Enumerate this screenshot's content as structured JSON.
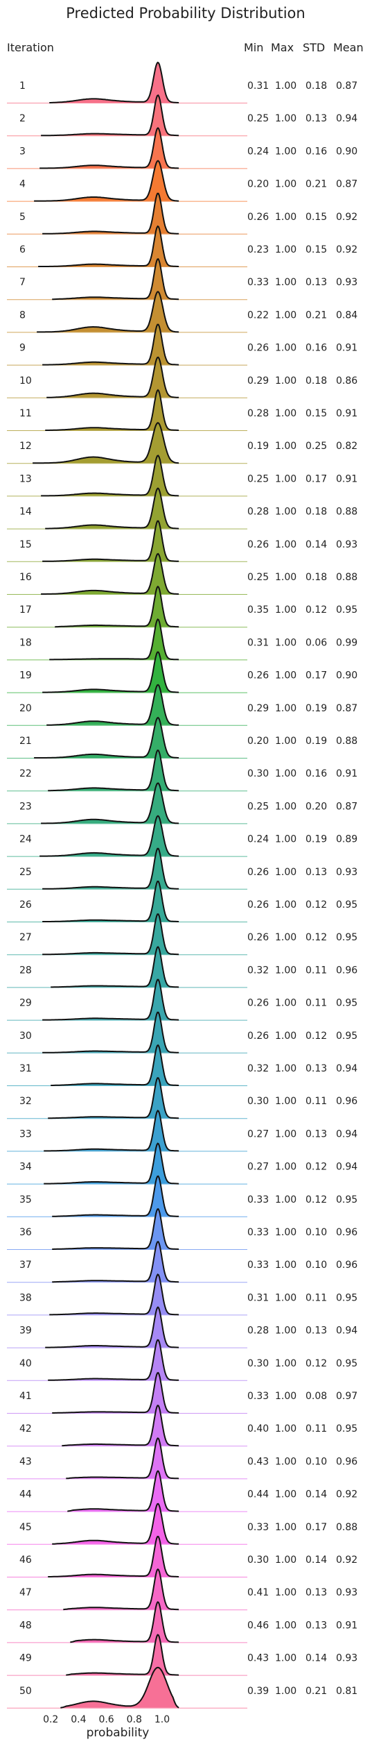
{
  "chart_data": {
    "type": "ridgeline",
    "title": "Predicted Probability Distribution",
    "xlabel": "probability",
    "ylabel": "Iteration",
    "xlim": [
      0.0,
      1.2
    ],
    "xticks": [
      "0.2",
      "0.4",
      "0.6",
      "0.8",
      "1.0"
    ],
    "stat_headers": [
      "Min",
      "Max",
      "STD",
      "Mean"
    ],
    "rows": [
      {
        "iteration": "1",
        "min": "0.31",
        "max": "1.00",
        "std": "0.18",
        "mean": "0.87",
        "color": "#f77189"
      },
      {
        "iteration": "2",
        "min": "0.25",
        "max": "1.00",
        "std": "0.13",
        "mean": "0.94",
        "color": "#f7737c"
      },
      {
        "iteration": "3",
        "min": "0.24",
        "max": "1.00",
        "std": "0.16",
        "mean": "0.90",
        "color": "#f7754f"
      },
      {
        "iteration": "4",
        "min": "0.20",
        "max": "1.00",
        "std": "0.21",
        "mean": "0.87",
        "color": "#f57a32"
      },
      {
        "iteration": "5",
        "min": "0.26",
        "max": "1.00",
        "std": "0.15",
        "mean": "0.92",
        "color": "#e57f32"
      },
      {
        "iteration": "6",
        "min": "0.23",
        "max": "1.00",
        "std": "0.15",
        "mean": "0.92",
        "color": "#d98632"
      },
      {
        "iteration": "7",
        "min": "0.33",
        "max": "1.00",
        "std": "0.13",
        "mean": "0.93",
        "color": "#cf8a32"
      },
      {
        "iteration": "8",
        "min": "0.22",
        "max": "1.00",
        "std": "0.21",
        "mean": "0.84",
        "color": "#c48f32"
      },
      {
        "iteration": "9",
        "min": "0.26",
        "max": "1.00",
        "std": "0.16",
        "mean": "0.91",
        "color": "#bb9332"
      },
      {
        "iteration": "10",
        "min": "0.29",
        "max": "1.00",
        "std": "0.18",
        "mean": "0.86",
        "color": "#b39632"
      },
      {
        "iteration": "11",
        "min": "0.28",
        "max": "1.00",
        "std": "0.15",
        "mean": "0.91",
        "color": "#ab9a32"
      },
      {
        "iteration": "12",
        "min": "0.19",
        "max": "1.00",
        "std": "0.25",
        "mean": "0.82",
        "color": "#a49d32"
      },
      {
        "iteration": "13",
        "min": "0.25",
        "max": "1.00",
        "std": "0.17",
        "mean": "0.91",
        "color": "#9ca032"
      },
      {
        "iteration": "14",
        "min": "0.28",
        "max": "1.00",
        "std": "0.18",
        "mean": "0.88",
        "color": "#93a332"
      },
      {
        "iteration": "15",
        "min": "0.26",
        "max": "1.00",
        "std": "0.14",
        "mean": "0.93",
        "color": "#89a632"
      },
      {
        "iteration": "16",
        "min": "0.25",
        "max": "1.00",
        "std": "0.18",
        "mean": "0.88",
        "color": "#7ea932"
      },
      {
        "iteration": "17",
        "min": "0.35",
        "max": "1.00",
        "std": "0.12",
        "mean": "0.95",
        "color": "#6eac32"
      },
      {
        "iteration": "18",
        "min": "0.31",
        "max": "1.00",
        "std": "0.06",
        "mean": "0.99",
        "color": "#55af32"
      },
      {
        "iteration": "19",
        "min": "0.26",
        "max": "1.00",
        "std": "0.17",
        "mean": "0.90",
        "color": "#32b23f"
      },
      {
        "iteration": "20",
        "min": "0.29",
        "max": "1.00",
        "std": "0.19",
        "mean": "0.87",
        "color": "#34b058"
      },
      {
        "iteration": "21",
        "min": "0.20",
        "max": "1.00",
        "std": "0.19",
        "mean": "0.88",
        "color": "#35ae68"
      },
      {
        "iteration": "22",
        "min": "0.30",
        "max": "1.00",
        "std": "0.16",
        "mean": "0.91",
        "color": "#35ad74"
      },
      {
        "iteration": "23",
        "min": "0.25",
        "max": "1.00",
        "std": "0.20",
        "mean": "0.87",
        "color": "#36ac7e"
      },
      {
        "iteration": "24",
        "min": "0.24",
        "max": "1.00",
        "std": "0.19",
        "mean": "0.89",
        "color": "#36ab87"
      },
      {
        "iteration": "25",
        "min": "0.26",
        "max": "1.00",
        "std": "0.13",
        "mean": "0.93",
        "color": "#37aa8f"
      },
      {
        "iteration": "26",
        "min": "0.26",
        "max": "1.00",
        "std": "0.12",
        "mean": "0.95",
        "color": "#37a997"
      },
      {
        "iteration": "27",
        "min": "0.26",
        "max": "1.00",
        "std": "0.12",
        "mean": "0.95",
        "color": "#38a89e"
      },
      {
        "iteration": "28",
        "min": "0.32",
        "max": "1.00",
        "std": "0.11",
        "mean": "0.96",
        "color": "#38a7a5"
      },
      {
        "iteration": "29",
        "min": "0.26",
        "max": "1.00",
        "std": "0.11",
        "mean": "0.95",
        "color": "#39a6ad"
      },
      {
        "iteration": "30",
        "min": "0.26",
        "max": "1.00",
        "std": "0.12",
        "mean": "0.95",
        "color": "#3aa5b4"
      },
      {
        "iteration": "31",
        "min": "0.32",
        "max": "1.00",
        "std": "0.13",
        "mean": "0.94",
        "color": "#3aa4bc"
      },
      {
        "iteration": "32",
        "min": "0.30",
        "max": "1.00",
        "std": "0.11",
        "mean": "0.96",
        "color": "#3ba2c5"
      },
      {
        "iteration": "33",
        "min": "0.27",
        "max": "1.00",
        "std": "0.13",
        "mean": "0.94",
        "color": "#3ca0d0"
      },
      {
        "iteration": "34",
        "min": "0.27",
        "max": "1.00",
        "std": "0.12",
        "mean": "0.94",
        "color": "#3d9edc"
      },
      {
        "iteration": "35",
        "min": "0.33",
        "max": "1.00",
        "std": "0.12",
        "mean": "0.95",
        "color": "#4d9aeb"
      },
      {
        "iteration": "36",
        "min": "0.33",
        "max": "1.00",
        "std": "0.10",
        "mean": "0.96",
        "color": "#6b96f1"
      },
      {
        "iteration": "37",
        "min": "0.33",
        "max": "1.00",
        "std": "0.10",
        "mean": "0.96",
        "color": "#8391f4"
      },
      {
        "iteration": "38",
        "min": "0.31",
        "max": "1.00",
        "std": "0.11",
        "mean": "0.95",
        "color": "#968df4"
      },
      {
        "iteration": "39",
        "min": "0.28",
        "max": "1.00",
        "std": "0.13",
        "mean": "0.94",
        "color": "#a689f4"
      },
      {
        "iteration": "40",
        "min": "0.30",
        "max": "1.00",
        "std": "0.12",
        "mean": "0.95",
        "color": "#b585f4"
      },
      {
        "iteration": "41",
        "min": "0.33",
        "max": "1.00",
        "std": "0.08",
        "mean": "0.97",
        "color": "#c380f4"
      },
      {
        "iteration": "42",
        "min": "0.40",
        "max": "1.00",
        "std": "0.11",
        "mean": "0.95",
        "color": "#d07bf4"
      },
      {
        "iteration": "43",
        "min": "0.43",
        "max": "1.00",
        "std": "0.10",
        "mean": "0.96",
        "color": "#dd74f4"
      },
      {
        "iteration": "44",
        "min": "0.44",
        "max": "1.00",
        "std": "0.14",
        "mean": "0.92",
        "color": "#ea6cf3"
      },
      {
        "iteration": "45",
        "min": "0.33",
        "max": "1.00",
        "std": "0.17",
        "mean": "0.88",
        "color": "#f363e7"
      },
      {
        "iteration": "46",
        "min": "0.30",
        "max": "1.00",
        "std": "0.14",
        "mean": "0.92",
        "color": "#f466d6"
      },
      {
        "iteration": "47",
        "min": "0.41",
        "max": "1.00",
        "std": "0.13",
        "mean": "0.93",
        "color": "#f568c6"
      },
      {
        "iteration": "48",
        "min": "0.46",
        "max": "1.00",
        "std": "0.13",
        "mean": "0.91",
        "color": "#f56bb6"
      },
      {
        "iteration": "49",
        "min": "0.43",
        "max": "1.00",
        "std": "0.14",
        "mean": "0.93",
        "color": "#f66ea6"
      },
      {
        "iteration": "50",
        "min": "0.39",
        "max": "1.00",
        "std": "0.21",
        "mean": "0.81",
        "color": "#f77096"
      }
    ]
  }
}
